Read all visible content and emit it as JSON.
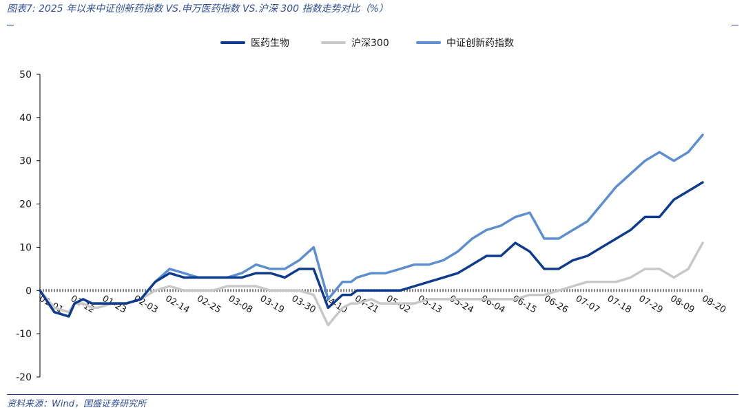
{
  "header": {
    "title": "图表7:  2025 年以来中证创新药指数 VS.申万医药指数 VS.沪深 300 指数走势对比（%）"
  },
  "footer": {
    "source": "资料来源：Wind，国盛证券研究所"
  },
  "colors": {
    "brand": "#1f3f8a",
    "series_1": "#0d3b8f",
    "series_2": "#c8c8c8",
    "series_3": "#5b8fd1"
  },
  "chart_data": {
    "type": "line",
    "title": "",
    "xlabel": "",
    "ylabel": "",
    "ylim": [
      -20,
      50
    ],
    "yticks": [
      -20,
      -10,
      0,
      10,
      20,
      30,
      40,
      50
    ],
    "x_tick_labels": [
      "01-01",
      "01-12",
      "01-23",
      "02-03",
      "02-14",
      "02-25",
      "03-08",
      "03-19",
      "03-30",
      "04-10",
      "04-21",
      "05-02",
      "05-13",
      "05-24",
      "06-04",
      "06-15",
      "06-26",
      "07-07",
      "07-18",
      "07-29",
      "08-09",
      "08-20"
    ],
    "legend_position": "top-center",
    "series": [
      {
        "name": "医药生物",
        "color": "#0d3b8f",
        "x": [
          0,
          5,
          10,
          12,
          15,
          18,
          20,
          25,
          30,
          35,
          40,
          45,
          50,
          55,
          60,
          65,
          70,
          75,
          80,
          85,
          90,
          95,
          100,
          105,
          108,
          110,
          115,
          118,
          120,
          125,
          130,
          135,
          140,
          145,
          150,
          155,
          160,
          165,
          170,
          175,
          180,
          185,
          190,
          195,
          200,
          205,
          210,
          215,
          220,
          225,
          230
        ],
        "values": [
          0,
          -5,
          -6,
          -3,
          -2,
          -3,
          -3,
          -3,
          -3,
          -2,
          2,
          4,
          3,
          3,
          3,
          3,
          3,
          4,
          4,
          3,
          5,
          5,
          -4,
          -1,
          -1,
          0,
          0,
          0,
          0,
          0,
          1,
          2,
          3,
          4,
          6,
          8,
          8,
          11,
          9,
          5,
          5,
          7,
          8,
          10,
          12,
          14,
          17,
          17,
          21,
          23,
          25
        ]
      },
      {
        "name": "沪深300",
        "color": "#c8c8c8",
        "x": [
          0,
          5,
          10,
          12,
          15,
          18,
          20,
          25,
          30,
          35,
          40,
          45,
          50,
          55,
          60,
          65,
          70,
          75,
          80,
          85,
          90,
          95,
          100,
          105,
          108,
          110,
          115,
          118,
          120,
          125,
          130,
          135,
          140,
          145,
          150,
          155,
          160,
          165,
          170,
          175,
          180,
          185,
          190,
          195,
          200,
          205,
          210,
          215,
          220,
          225,
          230
        ],
        "values": [
          0,
          -4,
          -5,
          -3,
          -3,
          -4,
          -4,
          -3,
          -3,
          -2,
          0,
          1,
          0,
          0,
          0,
          1,
          1,
          1,
          0,
          0,
          0,
          -1,
          -8,
          -4,
          -3,
          -3,
          -2,
          -3,
          -3,
          -3,
          -3,
          -2,
          -2,
          -2,
          -2,
          -2,
          -2,
          -2,
          -1,
          -1,
          0,
          1,
          2,
          2,
          2,
          3,
          5,
          5,
          3,
          5,
          11
        ]
      },
      {
        "name": "中证创新药指数",
        "color": "#5b8fd1",
        "x": [
          0,
          5,
          10,
          12,
          15,
          18,
          20,
          25,
          30,
          35,
          40,
          45,
          50,
          55,
          60,
          65,
          70,
          75,
          80,
          85,
          90,
          95,
          100,
          105,
          108,
          110,
          115,
          118,
          120,
          125,
          130,
          135,
          140,
          145,
          150,
          155,
          160,
          165,
          170,
          175,
          180,
          185,
          190,
          195,
          200,
          205,
          210,
          215,
          220,
          225,
          230
        ],
        "values": [
          0,
          -5,
          -6,
          -3,
          -2,
          -3,
          -3,
          -3,
          -3,
          -2,
          2,
          5,
          4,
          3,
          3,
          3,
          4,
          6,
          5,
          5,
          7,
          10,
          -2,
          2,
          2,
          3,
          4,
          4,
          4,
          5,
          6,
          6,
          7,
          9,
          12,
          14,
          15,
          17,
          18,
          12,
          12,
          14,
          16,
          20,
          24,
          27,
          30,
          32,
          30,
          32,
          36
        ]
      }
    ]
  }
}
